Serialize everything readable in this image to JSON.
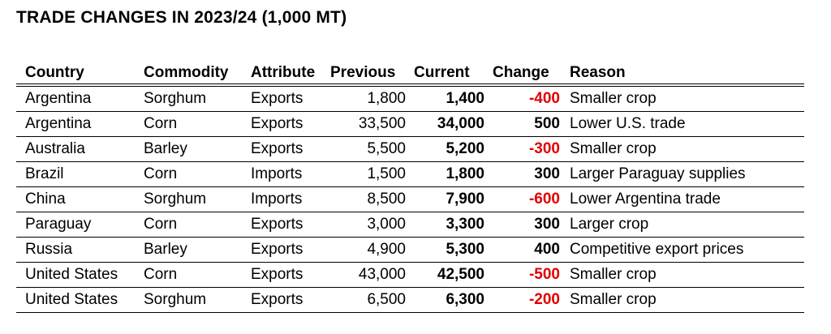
{
  "title": "TRADE CHANGES IN 2023/24 (1,000 MT)",
  "columns": [
    "Country",
    "Commodity",
    "Attribute",
    "Previous",
    "Current",
    "Change",
    "Reason"
  ],
  "colors": {
    "negative": "#e00000",
    "text": "#000000"
  },
  "rows": [
    {
      "country": "Argentina",
      "commodity": "Sorghum",
      "attribute": "Exports",
      "previous": "1,800",
      "current": "1,400",
      "change": "-400",
      "negative": true,
      "reason": "Smaller crop"
    },
    {
      "country": "Argentina",
      "commodity": "Corn",
      "attribute": "Exports",
      "previous": "33,500",
      "current": "34,000",
      "change": "500",
      "negative": false,
      "reason": "Lower U.S. trade"
    },
    {
      "country": "Australia",
      "commodity": "Barley",
      "attribute": "Exports",
      "previous": "5,500",
      "current": "5,200",
      "change": "-300",
      "negative": true,
      "reason": "Smaller crop"
    },
    {
      "country": "Brazil",
      "commodity": "Corn",
      "attribute": "Imports",
      "previous": "1,500",
      "current": "1,800",
      "change": "300",
      "negative": false,
      "reason": "Larger Paraguay supplies"
    },
    {
      "country": "China",
      "commodity": "Sorghum",
      "attribute": "Imports",
      "previous": "8,500",
      "current": "7,900",
      "change": "-600",
      "negative": true,
      "reason": "Lower Argentina trade"
    },
    {
      "country": "Paraguay",
      "commodity": "Corn",
      "attribute": "Exports",
      "previous": "3,000",
      "current": "3,300",
      "change": "300",
      "negative": false,
      "reason": "Larger crop"
    },
    {
      "country": "Russia",
      "commodity": "Barley",
      "attribute": "Exports",
      "previous": "4,900",
      "current": "5,300",
      "change": "400",
      "negative": false,
      "reason": "Competitive export prices"
    },
    {
      "country": "United States",
      "commodity": "Corn",
      "attribute": "Exports",
      "previous": "43,000",
      "current": "42,500",
      "change": "-500",
      "negative": true,
      "reason": "Smaller crop"
    },
    {
      "country": "United States",
      "commodity": "Sorghum",
      "attribute": "Exports",
      "previous": "6,500",
      "current": "6,300",
      "change": "-200",
      "negative": true,
      "reason": "Smaller crop"
    }
  ]
}
